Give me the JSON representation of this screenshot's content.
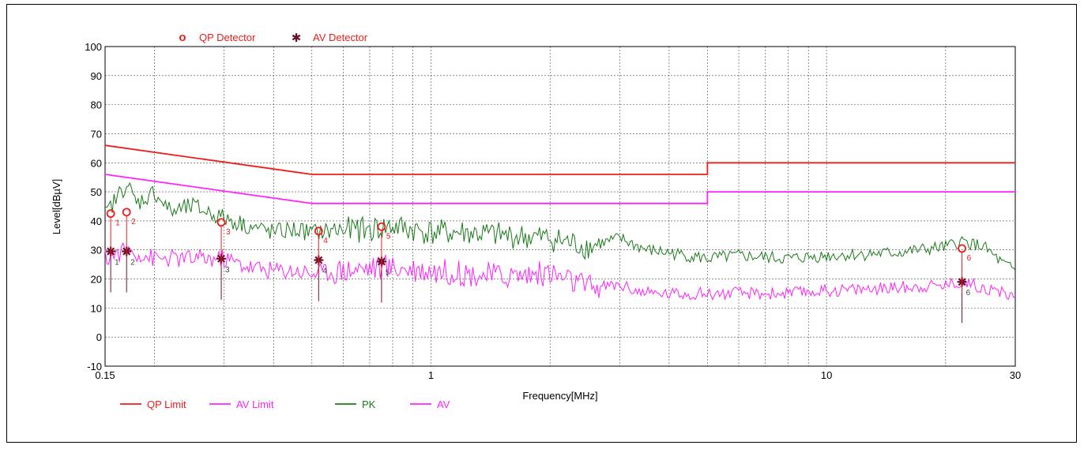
{
  "colors": {
    "qp_limit": "#ee1c1c",
    "av_limit": "#ff22ff",
    "pk": "#1a7a1a",
    "av": "#ff22ff",
    "qp_marker": "#ee1c1c",
    "av_marker": "#6b0f2a"
  },
  "legend_top": {
    "qp_detector": "QP Detector",
    "av_detector": "AV Detector",
    "qp_symbol": "o",
    "av_symbol": "✱"
  },
  "legend_bottom": [
    {
      "label": "QP Limit",
      "color": "#ee1c1c"
    },
    {
      "label": "AV Limit",
      "color": "#ff22ff"
    },
    {
      "label": "PK",
      "color": "#1a7a1a"
    },
    {
      "label": "AV",
      "color": "#ff22ff"
    }
  ],
  "chart_data": {
    "type": "line",
    "xscale": "log",
    "xlim": [
      0.15,
      30
    ],
    "ylim": [
      -10,
      100
    ],
    "xlabel": "Frequency[MHz]",
    "ylabel": "Level[dBµV]",
    "grid": true,
    "x_tick_labels": [
      {
        "value": 0.15,
        "label": "0.15"
      },
      {
        "value": 1,
        "label": "1"
      },
      {
        "value": 10,
        "label": "10"
      },
      {
        "value": 30,
        "label": "30"
      }
    ],
    "y_ticks": [
      -10,
      0,
      10,
      20,
      30,
      40,
      50,
      60,
      70,
      80,
      90,
      100
    ],
    "series": [
      {
        "name": "QP Limit",
        "x": [
          0.15,
          0.5,
          0.5,
          5,
          5,
          30
        ],
        "y": [
          66,
          56,
          56,
          56,
          60,
          60
        ]
      },
      {
        "name": "AV Limit",
        "x": [
          0.15,
          0.5,
          0.5,
          5,
          5,
          30
        ],
        "y": [
          56,
          46,
          46,
          46,
          50,
          50
        ]
      },
      {
        "name": "PK",
        "x": [
          0.15,
          0.17,
          0.18,
          0.2,
          0.22,
          0.25,
          0.3,
          0.35,
          0.4,
          0.45,
          0.5,
          0.6,
          0.7,
          0.8,
          1,
          1.2,
          1.5,
          2,
          2.5,
          3,
          3.5,
          4,
          5,
          6,
          8,
          10,
          15,
          20,
          22,
          25,
          28,
          30
        ],
        "y": [
          42,
          53,
          46,
          50,
          43,
          45,
          41,
          38,
          36,
          37,
          36,
          37,
          37,
          38,
          36,
          36,
          35,
          34,
          31,
          34,
          30,
          29,
          27,
          28,
          27,
          28,
          29,
          31,
          33,
          31,
          25,
          23
        ]
      },
      {
        "name": "AV",
        "x": [
          0.15,
          0.17,
          0.2,
          0.25,
          0.3,
          0.35,
          0.4,
          0.45,
          0.5,
          0.6,
          0.7,
          0.8,
          1,
          1.2,
          1.5,
          2,
          2.5,
          3,
          3.5,
          4,
          5,
          6,
          8,
          10,
          15,
          20,
          22,
          25,
          28,
          30
        ],
        "y": [
          27,
          30,
          27,
          27,
          27,
          24,
          23,
          23,
          22,
          23,
          24,
          24,
          23,
          22,
          21,
          22,
          17,
          18,
          15,
          15,
          15,
          15,
          15,
          16,
          17,
          18,
          19,
          17,
          15,
          14
        ]
      }
    ],
    "qp_markers": [
      {
        "n": "1",
        "x": 0.155,
        "y": 42.5
      },
      {
        "n": "2",
        "x": 0.17,
        "y": 43
      },
      {
        "n": "3",
        "x": 0.295,
        "y": 39.5
      },
      {
        "n": "4",
        "x": 0.52,
        "y": 36.5
      },
      {
        "n": "5",
        "x": 0.75,
        "y": 38
      },
      {
        "n": "6",
        "x": 22,
        "y": 30.5
      }
    ],
    "av_markers": [
      {
        "n": "1",
        "x": 0.155,
        "y": 29.5
      },
      {
        "n": "2",
        "x": 0.17,
        "y": 29.5
      },
      {
        "n": "3",
        "x": 0.295,
        "y": 27
      },
      {
        "n": "4",
        "x": 0.52,
        "y": 26.5
      },
      {
        "n": "5",
        "x": 0.75,
        "y": 26
      },
      {
        "n": "6",
        "x": 22,
        "y": 19
      }
    ]
  }
}
